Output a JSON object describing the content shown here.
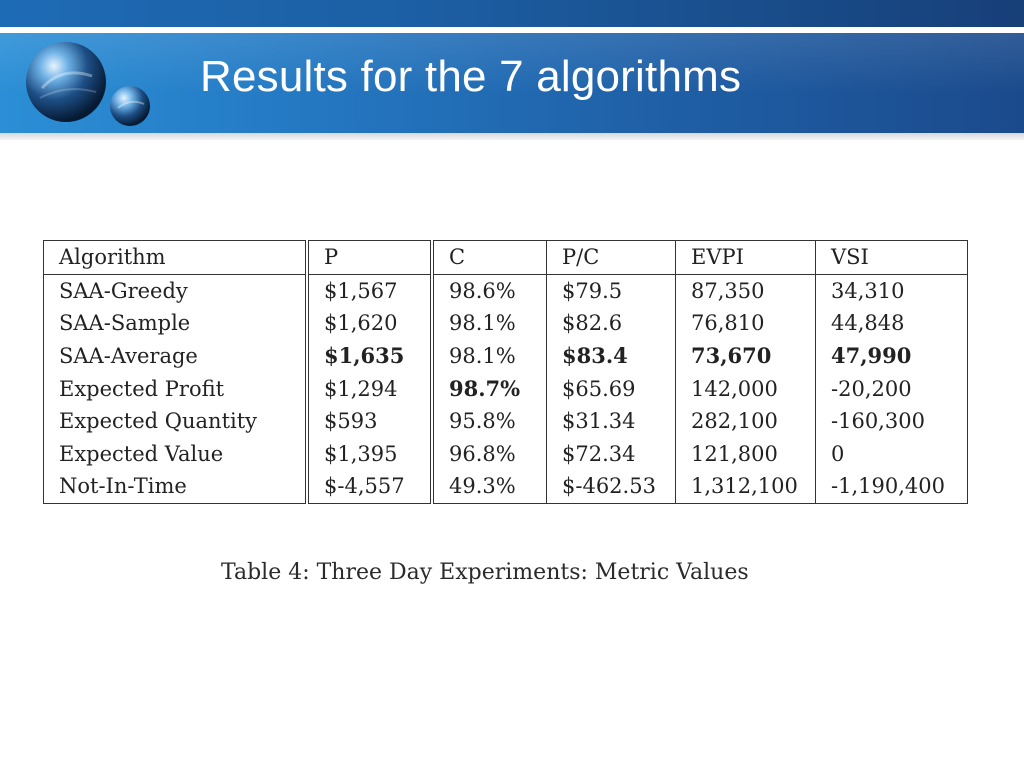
{
  "slide": {
    "title": "Results for the 7 algorithms",
    "logo_icon": "blue-spheres-logo",
    "colors": {
      "banner_light": "#2b8fd6",
      "banner_dark": "#1b4a8c",
      "title_text": "#ffffff"
    }
  },
  "table": {
    "headers": [
      "Algorithm",
      "P",
      "C",
      "P/C",
      "EVPI",
      "VSI"
    ],
    "rows": [
      {
        "cells": [
          "SAA-Greedy",
          "$1,567",
          "98.6%",
          "$79.5",
          "87,350",
          "34,310"
        ],
        "bold": []
      },
      {
        "cells": [
          "SAA-Sample",
          "$1,620",
          "98.1%",
          "$82.6",
          "76,810",
          "44,848"
        ],
        "bold": []
      },
      {
        "cells": [
          "SAA-Average",
          "$1,635",
          "98.1%",
          "$83.4",
          "73,670",
          "47,990"
        ],
        "bold": [
          1,
          3,
          4,
          5
        ]
      },
      {
        "cells": [
          "Expected Profit",
          "$1,294",
          "98.7%",
          "$65.69",
          "142,000",
          "-20,200"
        ],
        "bold": [
          2
        ]
      },
      {
        "cells": [
          "Expected Quantity",
          "$593",
          "95.8%",
          "$31.34",
          "282,100",
          "-160,300"
        ],
        "bold": []
      },
      {
        "cells": [
          "Expected Value",
          "$1,395",
          "96.8%",
          "$72.34",
          "121,800",
          "0"
        ],
        "bold": []
      },
      {
        "cells": [
          "Not-In-Time",
          "$-4,557",
          "49.3%",
          "$-462.53",
          "1,312,100",
          "-1,190,400"
        ],
        "bold": []
      }
    ],
    "caption": "Table 4:  Three Day Experiments:  Metric Values"
  }
}
